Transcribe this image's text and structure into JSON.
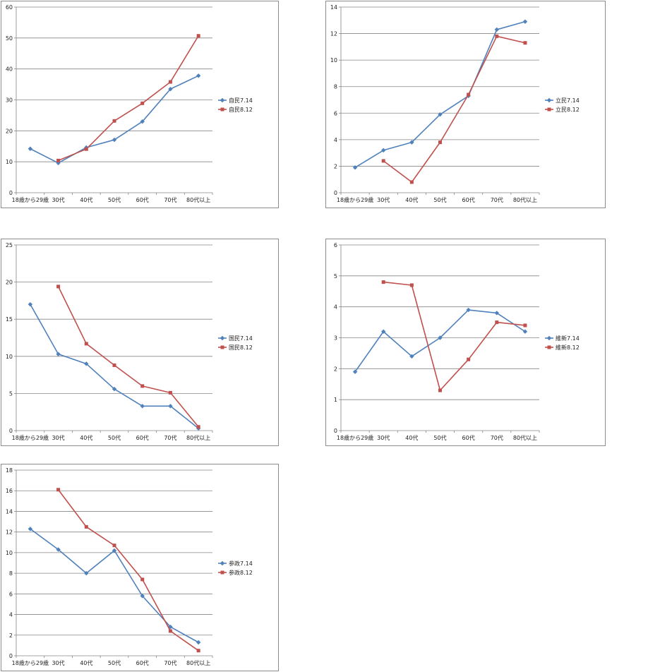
{
  "chart_data": [
    {
      "type": "line",
      "categories": [
        "18歳から29歳",
        "30代",
        "40代",
        "50代",
        "60代",
        "70代",
        "80代以上"
      ],
      "ylim": [
        0,
        60
      ],
      "yticks": [
        0,
        10,
        20,
        30,
        40,
        50,
        60
      ],
      "grid": true,
      "legend_position": "right",
      "series": [
        {
          "name": "自民7.14",
          "color": "#4f81bd",
          "marker": "diamond",
          "values": [
            14.2,
            9.6,
            14.6,
            17.1,
            23.0,
            33.5,
            37.8
          ]
        },
        {
          "name": "自民8.12",
          "color": "#c0504d",
          "marker": "square",
          "values": [
            null,
            10.4,
            14.1,
            23.2,
            28.9,
            35.8,
            50.7
          ]
        }
      ]
    },
    {
      "type": "line",
      "categories": [
        "18歳から29歳",
        "30代",
        "40代",
        "50代",
        "60代",
        "70代",
        "80代以上"
      ],
      "ylim": [
        0,
        14
      ],
      "yticks": [
        0,
        2,
        4,
        6,
        8,
        10,
        12,
        14
      ],
      "grid": true,
      "legend_position": "right",
      "series": [
        {
          "name": "立民7.14",
          "color": "#4f81bd",
          "marker": "diamond",
          "values": [
            1.9,
            3.2,
            3.8,
            5.9,
            7.3,
            12.3,
            12.9
          ]
        },
        {
          "name": "立民8.12",
          "color": "#c0504d",
          "marker": "square",
          "values": [
            null,
            2.4,
            0.8,
            3.8,
            7.4,
            11.8,
            11.3
          ]
        }
      ]
    },
    {
      "type": "line",
      "categories": [
        "18歳から29歳",
        "30代",
        "40代",
        "50代",
        "60代",
        "70代",
        "80代以上"
      ],
      "ylim": [
        0,
        25
      ],
      "yticks": [
        0,
        5,
        10,
        15,
        20,
        25
      ],
      "grid": true,
      "legend_position": "right",
      "series": [
        {
          "name": "国民7.14",
          "color": "#4f81bd",
          "marker": "diamond",
          "values": [
            17.0,
            10.3,
            9.0,
            5.6,
            3.3,
            3.3,
            0.3
          ]
        },
        {
          "name": "国民8.12",
          "color": "#c0504d",
          "marker": "square",
          "values": [
            null,
            19.4,
            11.7,
            8.8,
            6.0,
            5.1,
            0.5
          ]
        }
      ]
    },
    {
      "type": "line",
      "categories": [
        "18歳から29歳",
        "30代",
        "40代",
        "50代",
        "60代",
        "70代",
        "80代以上"
      ],
      "ylim": [
        0,
        6
      ],
      "yticks": [
        0,
        1,
        2,
        3,
        4,
        5,
        6
      ],
      "grid": true,
      "legend_position": "right",
      "series": [
        {
          "name": "維新7.14",
          "color": "#4f81bd",
          "marker": "diamond",
          "values": [
            1.9,
            3.2,
            2.4,
            3.0,
            3.9,
            3.8,
            3.2
          ]
        },
        {
          "name": "維新8.12",
          "color": "#c0504d",
          "marker": "square",
          "values": [
            null,
            4.8,
            4.7,
            1.3,
            2.3,
            3.5,
            3.4
          ]
        }
      ]
    },
    {
      "type": "line",
      "categories": [
        "18歳から29歳",
        "30代",
        "40代",
        "50代",
        "60代",
        "70代",
        "80代以上"
      ],
      "ylim": [
        0,
        18
      ],
      "yticks": [
        0,
        2,
        4,
        6,
        8,
        10,
        12,
        14,
        16,
        18
      ],
      "grid": true,
      "legend_position": "right",
      "series": [
        {
          "name": "参政7.14",
          "color": "#4f81bd",
          "marker": "diamond",
          "values": [
            12.3,
            10.3,
            8.0,
            10.2,
            5.8,
            2.8,
            1.3
          ]
        },
        {
          "name": "参政8.12",
          "color": "#c0504d",
          "marker": "square",
          "values": [
            null,
            16.1,
            12.5,
            10.7,
            7.4,
            2.4,
            0.5
          ]
        }
      ]
    }
  ]
}
